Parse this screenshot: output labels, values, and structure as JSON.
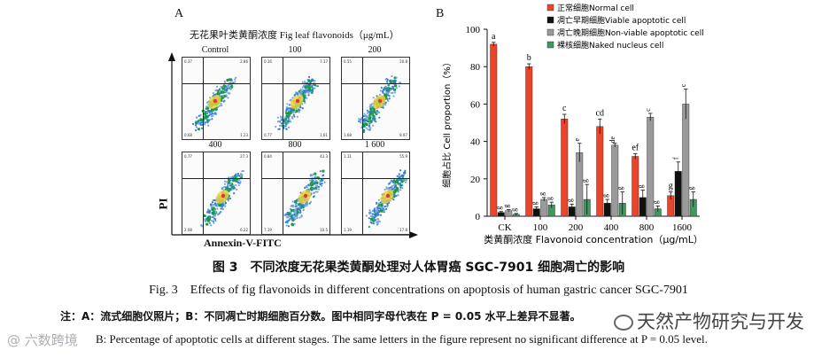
{
  "panel_a": {
    "label": "A",
    "title": "无花果叶类黄酮浓度 Fig leaf flavonoids（μg/mL）",
    "cells": [
      {
        "label": "Control",
        "q": [
          "0.37",
          "2.86",
          "0.68",
          "1.23"
        ]
      },
      {
        "label": "100",
        "q": [
          "0.16",
          "7.17",
          "0.77",
          "1.61"
        ]
      },
      {
        "label": "200",
        "q": [
          "0.55",
          "20.8",
          "1.68",
          "8.97"
        ]
      },
      {
        "label": "400",
        "q": [
          "0.77",
          "27.3",
          "2.08",
          "6.22"
        ]
      },
      {
        "label": "800",
        "q": [
          "0.84",
          "43.3",
          "7.19",
          "10.5"
        ]
      },
      {
        "label": "1 600",
        "q": [
          "1.11",
          "55.9",
          "1.19",
          "17.8"
        ]
      }
    ],
    "y_axis_label": "PI",
    "x_axis_label": "Annexin-V-FITC"
  },
  "panel_b": {
    "label": "B"
  },
  "chart_data": {
    "type": "bar",
    "categories": [
      "CK",
      "100",
      "200",
      "400",
      "800",
      "1600"
    ],
    "series": [
      {
        "name": "正常细胞Normal cell",
        "color": "#e8452c",
        "values": [
          92,
          80,
          52,
          48,
          32,
          11
        ],
        "errors": [
          1,
          1.5,
          2.5,
          4,
          1.5,
          2
        ],
        "letters": [
          "a",
          "b",
          "c",
          "cd",
          "ef",
          "g"
        ]
      },
      {
        "name": "凋亡早期细胞Viable apoptotic cell",
        "color": "#111111",
        "values": [
          2,
          4,
          5,
          7,
          10,
          24
        ],
        "errors": [
          0.5,
          1,
          1.5,
          2,
          4,
          5
        ],
        "letters": [
          "g",
          "g",
          "g",
          "g",
          "g",
          "f"
        ]
      },
      {
        "name": "凋亡晚期细胞Non-viable apoptotic cell",
        "color": "#9a9a9a",
        "values": [
          3,
          9,
          34,
          38,
          53,
          60
        ],
        "errors": [
          0.5,
          1,
          5,
          1,
          2,
          8
        ],
        "letters": [
          "g",
          "g",
          "e",
          "de",
          "c",
          "c"
        ]
      },
      {
        "name": "裸核细胞Naked nucleus cell",
        "color": "#3d9a5f",
        "values": [
          1,
          6,
          9,
          7,
          4,
          9
        ],
        "errors": [
          0.5,
          1.5,
          8,
          6,
          1.5,
          4
        ],
        "letters": [
          "g",
          "g",
          "g",
          "g",
          "g",
          "g"
        ]
      }
    ],
    "ylim": [
      0,
      100
    ],
    "yticks": [
      "0",
      "20",
      "40",
      "60",
      "80",
      "100"
    ],
    "ylabel": "细胞占比 Cell proportion（%）",
    "xlabel": "类黄酮浓度 Flavonoid concentration（μg/mL）",
    "legend_position": "top-right"
  },
  "caption": {
    "cn_title": "图 3　不同浓度无花果类黄酮处理对人体胃癌 SGC-7901 细胞凋亡的影响",
    "en_title": "Fig. 3　Effects of fig flavonoids in different concentrations on apoptosis of human gastric cancer SGC-7901",
    "note_cn": "注：A：流式细胞仪照片；B：不同凋亡时期细胞百分数。图中相同字母代表在 P = 0.05 水平上差异不显著。",
    "note_en": "B: Percentage of apoptotic cells at different stages. The same letters in the figure represent no significant difference at P = 0.05 level."
  },
  "watermarks": {
    "left": "@ 六数跨境",
    "right": "天然产物研究与开发"
  }
}
